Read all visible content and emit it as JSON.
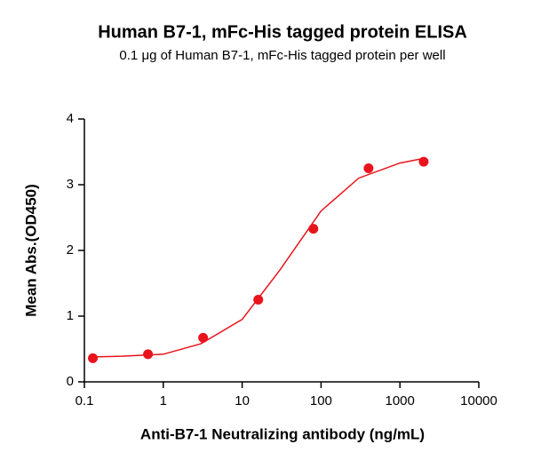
{
  "chart_data": {
    "type": "scatter",
    "title": "Human B7-1, mFc-His tagged protein ELISA",
    "subtitle": "0.1 μg of Human B7-1, mFc-His tagged protein per well",
    "x_label": "Anti-B7-1 Neutralizing antibody (ng/mL)",
    "y_label": "Mean Abs.(OD450)",
    "x_scale": "log",
    "xlim": [
      0.1,
      10000
    ],
    "xticks": [
      0.1,
      1,
      10,
      100,
      1000,
      10000
    ],
    "ylim": [
      0,
      4
    ],
    "yticks": [
      0,
      1,
      2,
      3,
      4
    ],
    "color": "#e8141c",
    "x": [
      0.128,
      0.64,
      3.2,
      16,
      80,
      400,
      2000
    ],
    "values": [
      0.36,
      0.42,
      0.67,
      1.25,
      2.33,
      3.25,
      3.35
    ],
    "fit": {
      "x": [
        0.128,
        0.3,
        1,
        3,
        10,
        30,
        100,
        300,
        1000,
        2000
      ],
      "values": [
        0.38,
        0.39,
        0.42,
        0.58,
        0.95,
        1.7,
        2.6,
        3.1,
        3.33,
        3.4
      ]
    }
  }
}
